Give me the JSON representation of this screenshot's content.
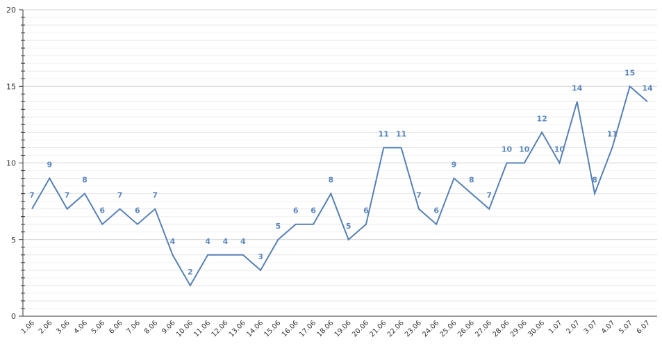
{
  "chart_data": {
    "type": "line",
    "categories": [
      "1.06",
      "2.06",
      "3.06",
      "4.06",
      "5.06",
      "6.06",
      "7.06",
      "8.06",
      "9.06",
      "10.06",
      "11.06",
      "12.06",
      "13.06",
      "14.06",
      "15.06",
      "16.06",
      "17.06",
      "18.06",
      "19.06",
      "20.06",
      "21.06",
      "22.06",
      "23.06",
      "24.06",
      "25.06",
      "26.06",
      "27.06",
      "28.06",
      "29.06",
      "30.06",
      "1.07",
      "2.07",
      "3.07",
      "4.07",
      "5.07",
      "6.07"
    ],
    "values": [
      7,
      9,
      7,
      8,
      6,
      7,
      6,
      7,
      4,
      2,
      4,
      4,
      4,
      3,
      5,
      6,
      6,
      8,
      5,
      6,
      11,
      11,
      7,
      6,
      9,
      8,
      7,
      10,
      10,
      12,
      10,
      14,
      8,
      11,
      15,
      14
    ],
    "color": "#5580b5",
    "ylim": [
      0,
      20
    ],
    "yticks": [
      0,
      5,
      10,
      15,
      20
    ],
    "grid": true
  }
}
